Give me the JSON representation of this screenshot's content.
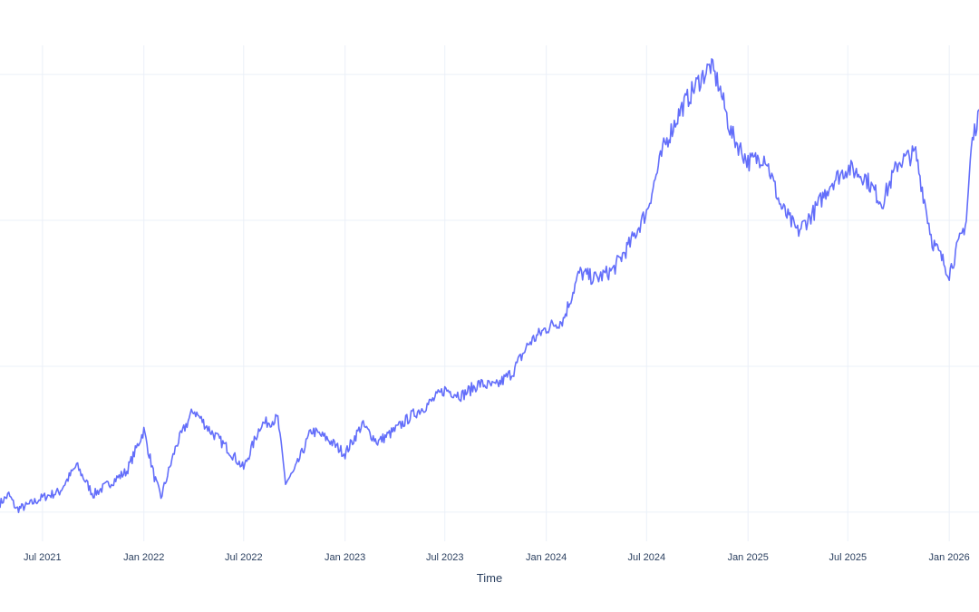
{
  "chart_data": {
    "type": "line",
    "title": "",
    "xlabel": "Time",
    "ylabel": "",
    "x_range": [
      "2021-04-15",
      "2026-02-24"
    ],
    "grid": true,
    "legend": "none",
    "x_tick_labels": [
      "Jul 2021",
      "Jan 2022",
      "Jul 2022",
      "Jan 2023",
      "Jul 2023",
      "Jan 2024",
      "Jul 2024",
      "Jan 2025",
      "Jul 2025",
      "Jan 2026"
    ],
    "series": [
      {
        "color": "#636efa",
        "points": [
          [
            "2021-04-15",
            0.03
          ],
          [
            "2021-05-01",
            0.06
          ],
          [
            "2021-05-15",
            0.01
          ],
          [
            "2021-06-01",
            0.02
          ],
          [
            "2021-07-01",
            0.05
          ],
          [
            "2021-08-01",
            0.07
          ],
          [
            "2021-09-01",
            0.16
          ],
          [
            "2021-10-01",
            0.06
          ],
          [
            "2021-11-01",
            0.1
          ],
          [
            "2021-12-01",
            0.14
          ],
          [
            "2022-01-01",
            0.28
          ],
          [
            "2022-01-20",
            0.12
          ],
          [
            "2022-02-01",
            0.05
          ],
          [
            "2022-03-01",
            0.23
          ],
          [
            "2022-04-01",
            0.35
          ],
          [
            "2022-05-01",
            0.28
          ],
          [
            "2022-06-01",
            0.22
          ],
          [
            "2022-07-01",
            0.15
          ],
          [
            "2022-08-01",
            0.3
          ],
          [
            "2022-09-01",
            0.32
          ],
          [
            "2022-09-15",
            0.1
          ],
          [
            "2022-10-01",
            0.14
          ],
          [
            "2022-11-01",
            0.28
          ],
          [
            "2022-12-01",
            0.25
          ],
          [
            "2023-01-01",
            0.2
          ],
          [
            "2023-02-01",
            0.3
          ],
          [
            "2023-03-01",
            0.24
          ],
          [
            "2023-04-01",
            0.28
          ],
          [
            "2023-05-01",
            0.33
          ],
          [
            "2023-06-01",
            0.37
          ],
          [
            "2023-07-01",
            0.42
          ],
          [
            "2023-08-01",
            0.4
          ],
          [
            "2023-09-01",
            0.44
          ],
          [
            "2023-10-01",
            0.43
          ],
          [
            "2023-11-01",
            0.48
          ],
          [
            "2023-12-01",
            0.58
          ],
          [
            "2024-01-01",
            0.63
          ],
          [
            "2024-02-01",
            0.66
          ],
          [
            "2024-03-01",
            0.82
          ],
          [
            "2024-04-01",
            0.8
          ],
          [
            "2024-05-01",
            0.83
          ],
          [
            "2024-06-01",
            0.92
          ],
          [
            "2024-07-01",
            1.03
          ],
          [
            "2024-08-01",
            1.25
          ],
          [
            "2024-09-01",
            1.38
          ],
          [
            "2024-10-01",
            1.47
          ],
          [
            "2024-10-25",
            1.53
          ],
          [
            "2024-11-10",
            1.46
          ],
          [
            "2024-12-01",
            1.3
          ],
          [
            "2025-01-01",
            1.2
          ],
          [
            "2025-02-01",
            1.22
          ],
          [
            "2025-03-01",
            1.05
          ],
          [
            "2025-04-01",
            0.96
          ],
          [
            "2025-05-01",
            1.03
          ],
          [
            "2025-06-01",
            1.13
          ],
          [
            "2025-07-01",
            1.18
          ],
          [
            "2025-08-01",
            1.15
          ],
          [
            "2025-09-01",
            1.06
          ],
          [
            "2025-10-01",
            1.2
          ],
          [
            "2025-11-01",
            1.23
          ],
          [
            "2025-12-01",
            0.93
          ],
          [
            "2026-01-01",
            0.82
          ],
          [
            "2026-01-20",
            0.93
          ],
          [
            "2026-02-01",
            1.0
          ],
          [
            "2026-02-10",
            1.25
          ],
          [
            "2026-02-24",
            1.38
          ]
        ]
      }
    ]
  }
}
